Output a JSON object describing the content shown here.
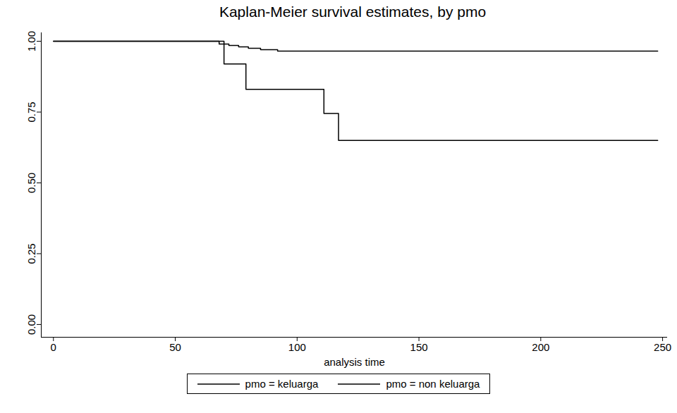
{
  "chart_data": {
    "type": "step",
    "title": "Kaplan-Meier survival estimates, by pmo",
    "x_label": "analysis time",
    "xlim": [
      -5,
      252
    ],
    "xticks": [
      0,
      50,
      100,
      150,
      200,
      250
    ],
    "ylim": [
      -0.045,
      1.03
    ],
    "yticks": [
      {
        "value": 0,
        "label": "0.00"
      },
      {
        "value": 0.25,
        "label": "0.25"
      },
      {
        "value": 0.5,
        "label": "0.50"
      },
      {
        "value": 0.75,
        "label": "0.75"
      },
      {
        "value": 1,
        "label": "1.00"
      }
    ],
    "grid": false,
    "legend": "bottom",
    "series": [
      {
        "name": "pmo = keluarga",
        "color": "#000000",
        "x": [
          0,
          68,
          72,
          76,
          80,
          85,
          92,
          248
        ],
        "values": [
          1,
          0.99,
          0.985,
          0.98,
          0.975,
          0.97,
          0.965,
          0.965
        ]
      },
      {
        "name": "pmo = non keluarga",
        "color": "#000000",
        "x": [
          0,
          70,
          79,
          111,
          117,
          248
        ],
        "values": [
          1,
          0.92,
          0.83,
          0.745,
          0.65,
          0.65
        ]
      }
    ]
  }
}
